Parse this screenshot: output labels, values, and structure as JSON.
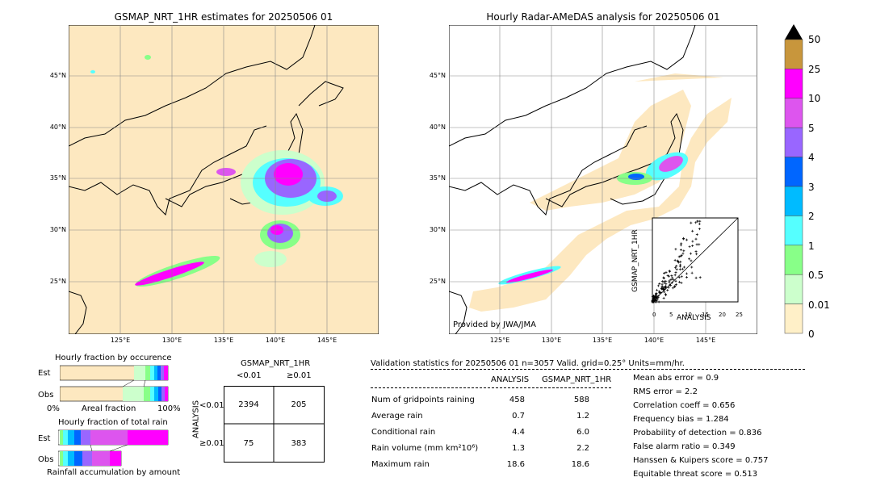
{
  "left_map": {
    "title": "GSMAP_NRT_1HR estimates for 20250506 01",
    "lat_labels": [
      "45°N",
      "40°N",
      "35°N",
      "30°N",
      "25°N"
    ],
    "lon_labels": [
      "125°E",
      "130°E",
      "135°E",
      "140°E",
      "145°E"
    ]
  },
  "right_map": {
    "title": "Hourly Radar-AMeDAS analysis for 20250506 01",
    "lat_labels": [
      "45°N",
      "40°N",
      "35°N",
      "30°N",
      "25°N"
    ],
    "lon_labels": [
      "125°E",
      "130°E",
      "135°E",
      "140°E",
      "145°E"
    ],
    "credit": "Provided by JWA/JMA"
  },
  "colorbar": {
    "labels": [
      "50",
      "25",
      "10",
      "5",
      "4",
      "3",
      "2",
      "1",
      "0.5",
      "0.01",
      "0"
    ],
    "colors": [
      "#c8963c",
      "#ff00ff",
      "#dd55ee",
      "#9966ff",
      "#0066ff",
      "#00bbff",
      "#55ffff",
      "#88ff88",
      "#ccffcc",
      "#fff0c8"
    ]
  },
  "inset_scatter": {
    "xlabel": "ANALYSIS",
    "ylabel": "GSMAP_NRT_1HR",
    "ticks": [
      "0",
      "5",
      "10",
      "15",
      "20",
      "25"
    ]
  },
  "occurrence": {
    "title": "Hourly fraction by occurence",
    "row1": "Est",
    "row2": "Obs",
    "axis_left": "0%",
    "axis_mid": "Areal fraction",
    "axis_right": "100%"
  },
  "total_rain": {
    "title": "Hourly fraction of total rain",
    "row1": "Est",
    "row2": "Obs",
    "footer": "Rainfall accumulation by amount"
  },
  "contingency": {
    "title": "GSMAP_NRT_1HR",
    "col1": "<0.01",
    "col2": "≥0.01",
    "side": "ANALYSIS",
    "row1": "<0.01",
    "row2": "≥0.01",
    "values": [
      "2394",
      "205",
      "75",
      "383"
    ]
  },
  "validation": {
    "header": "Validation statistics for 20250506 01  n=3057 Valid. grid=0.25° Units=mm/hr.",
    "col_analysis": "ANALYSIS",
    "col_gsmap": "GSMAP_NRT_1HR",
    "rows": [
      {
        "label": "Num of gridpoints raining",
        "a": "458",
        "g": "588"
      },
      {
        "label": "Average rain",
        "a": "0.7",
        "g": "1.2"
      },
      {
        "label": "Conditional rain",
        "a": "4.4",
        "g": "6.0"
      },
      {
        "label": "Rain volume (mm km²10⁶)",
        "a": "1.3",
        "g": "2.2"
      },
      {
        "label": "Maximum rain",
        "a": "18.6",
        "g": "18.6"
      }
    ],
    "scores": [
      "Mean abs error =    0.9",
      "RMS error =    2.2",
      "Correlation coeff =  0.656",
      "Frequency bias =  1.284",
      "Probability of detection =  0.836",
      "False alarm ratio =  0.349",
      "Hanssen & Kuipers score =  0.757",
      "Equitable threat score =  0.513"
    ]
  },
  "chart_data": [
    {
      "type": "heatmap",
      "title": "GSMAP_NRT_1HR estimates for 20250506 01",
      "x_ticks": [
        "125°E",
        "130°E",
        "135°E",
        "140°E",
        "145°E"
      ],
      "y_ticks": [
        "45°N",
        "40°N",
        "35°N",
        "30°N",
        "25°N"
      ]
    },
    {
      "type": "heatmap",
      "title": "Hourly Radar-AMeDAS analysis for 20250506 01",
      "x_ticks": [
        "125°E",
        "130°E",
        "135°E",
        "140°E",
        "145°E"
      ],
      "y_ticks": [
        "45°N",
        "40°N",
        "35°N",
        "30°N",
        "25°N"
      ]
    },
    {
      "type": "table",
      "title": "GSMAP_NRT_1HR",
      "rows": [
        [
          "2394",
          "205"
        ],
        [
          "75",
          "383"
        ]
      ]
    }
  ]
}
